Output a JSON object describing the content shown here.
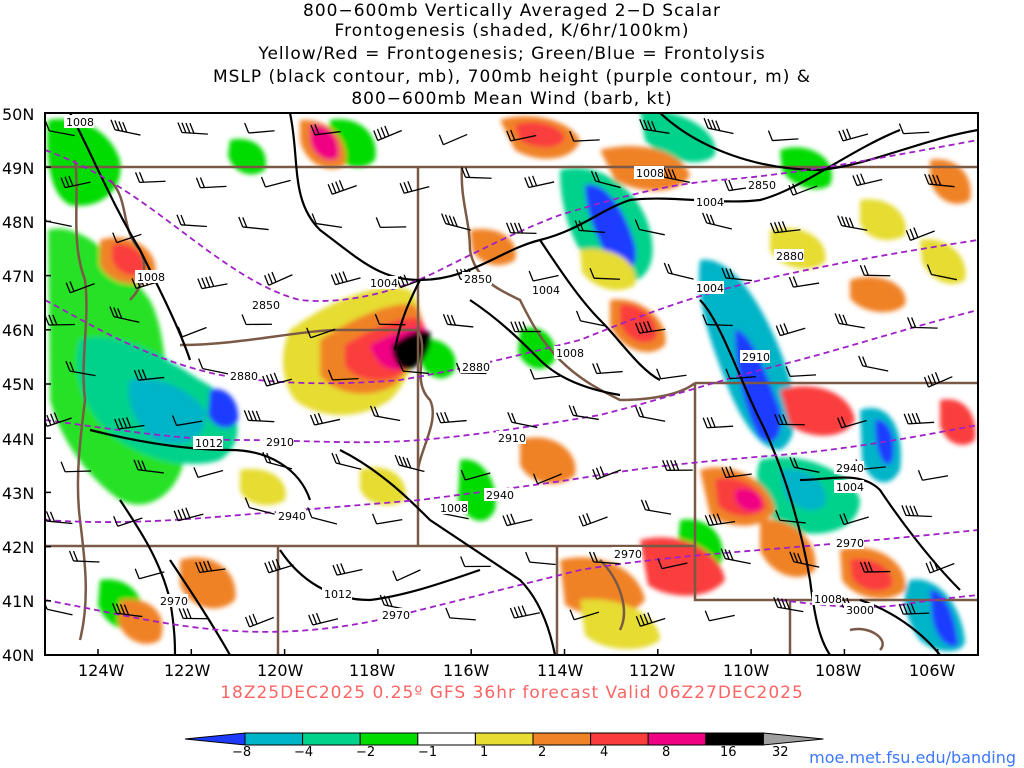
{
  "title_lines": [
    "800−600mb Vertically Averaged 2−D Scalar",
    "Frontogenesis (shaded, K/6hr/100km)",
    "Yellow/Red = Frontogenesis;  Green/Blue = Frontolysis",
    "MSLP (black contour, mb), 700mb height (purple contour, m) &",
    "800−600mb Mean Wind (barb, kt)"
  ],
  "lat_labels": [
    "50N",
    "49N",
    "48N",
    "47N",
    "46N",
    "45N",
    "44N",
    "43N",
    "42N",
    "41N",
    "40N"
  ],
  "lon_labels": [
    "124W",
    "122W",
    "120W",
    "118W",
    "116W",
    "114W",
    "112W",
    "110W",
    "108W",
    "106W"
  ],
  "run_label": "18Z25DEC2025 0.25º GFS 36hr forecast Valid 06Z27DEC2025",
  "colorbar": {
    "labels": [
      "−8",
      "−4",
      "−2",
      "−1",
      "1",
      "2",
      "4",
      "8",
      "16",
      "32"
    ],
    "colors": [
      "#1e3cff",
      "#00b4c8",
      "#00d28c",
      "#00dc00",
      "#ffffff",
      "#e6dc32",
      "#f08228",
      "#fa3c3c",
      "#f00082",
      "#000000",
      "#a0a0a0"
    ]
  },
  "contour_labels": {
    "mslp": [
      "1008",
      "1008",
      "1004",
      "1004",
      "1004",
      "1008",
      "1012",
      "1008",
      "1012",
      "1008",
      "1004",
      "1004",
      "1004",
      "1008"
    ],
    "height": [
      "2850",
      "2850",
      "2880",
      "2850",
      "2880",
      "2880",
      "2910",
      "2910",
      "2940",
      "2910",
      "2940",
      "2970",
      "2970",
      "2970",
      "3000",
      "2940",
      "2970"
    ]
  },
  "url": "moe.met.fsu.edu/banding"
}
